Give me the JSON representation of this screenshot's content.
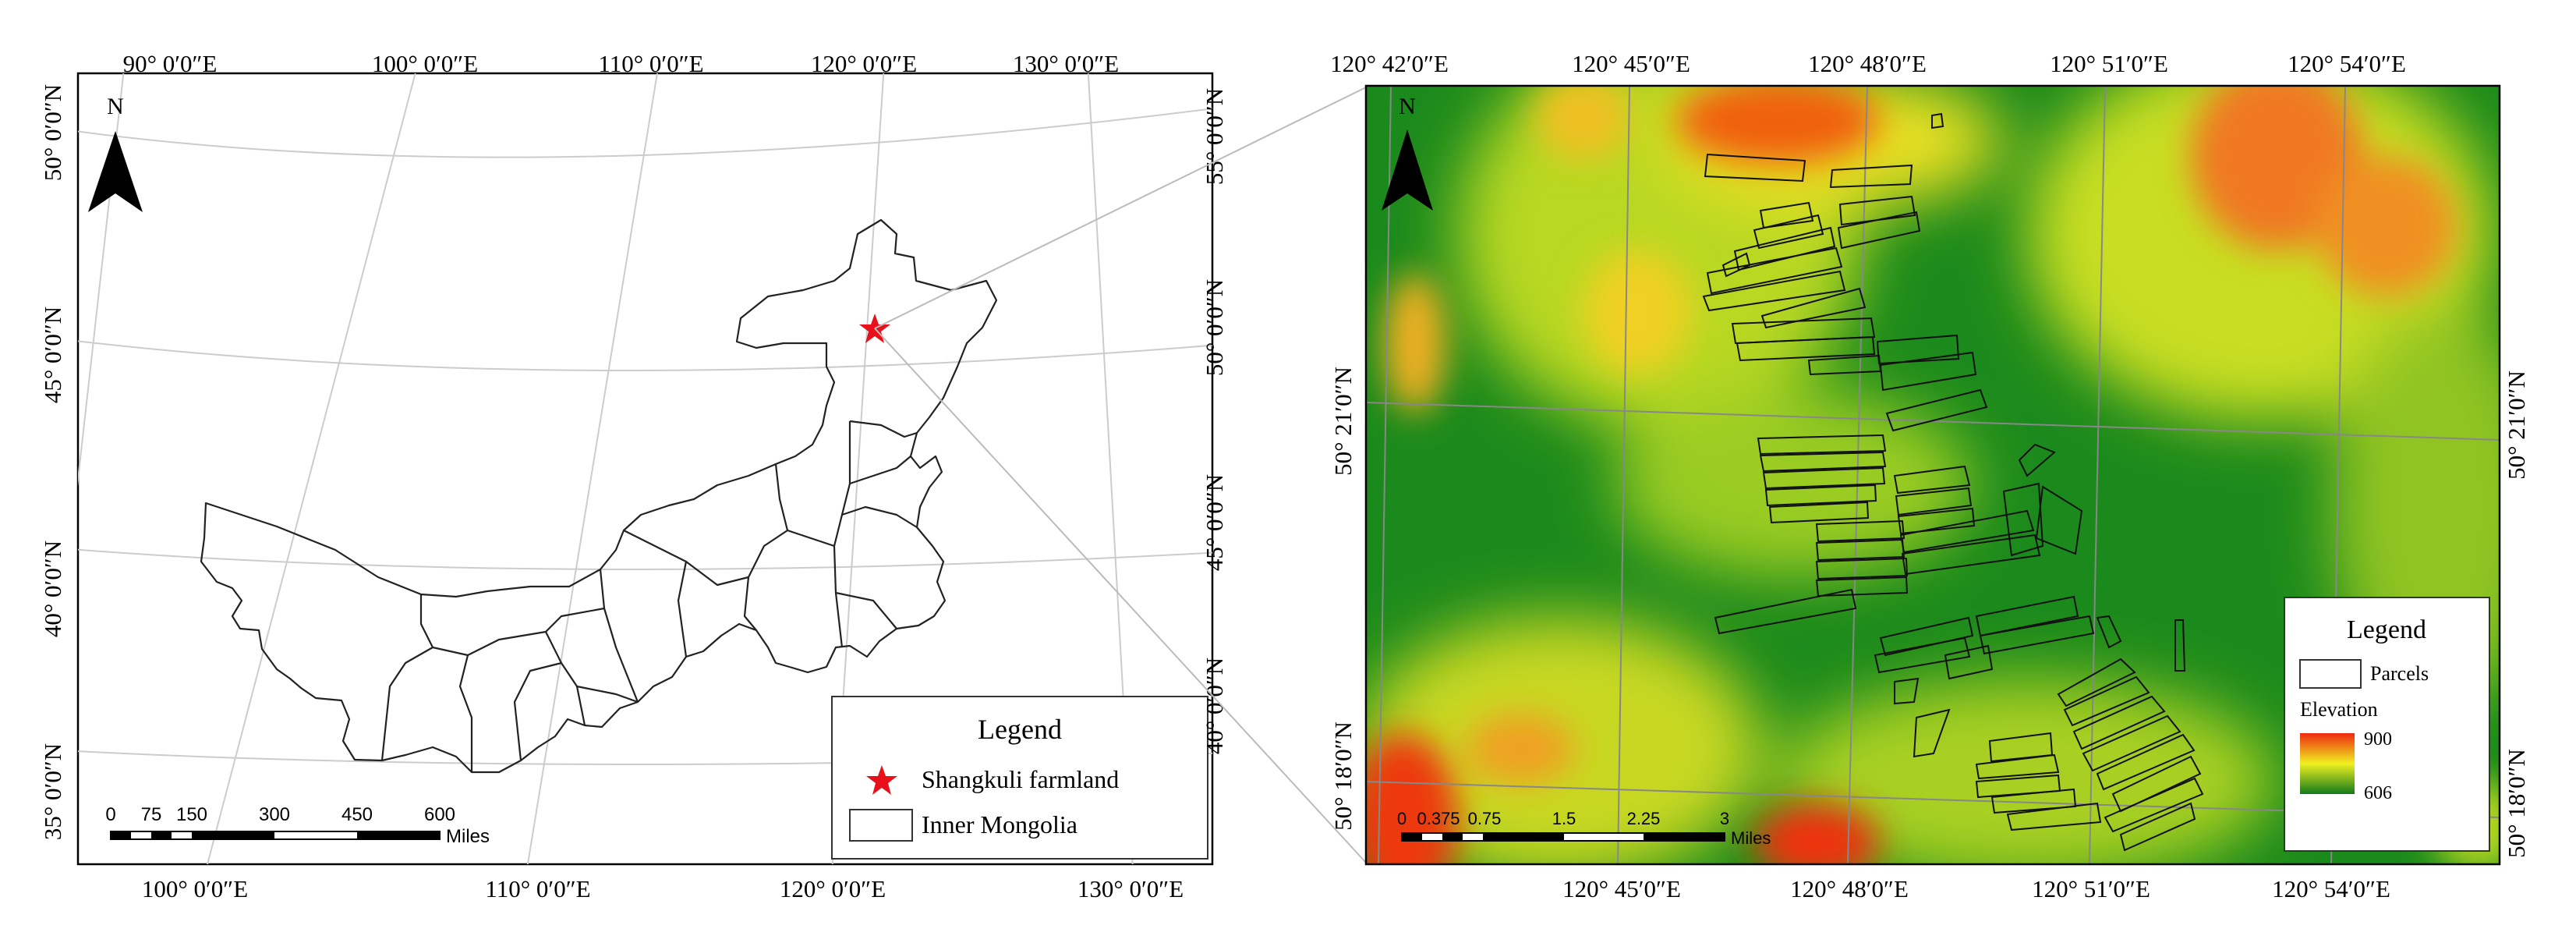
{
  "left_map": {
    "north_label": "N",
    "top_ticks": [
      "90° 0′0″E",
      "100° 0′0″E",
      "110° 0′0″E",
      "120° 0′0″E",
      "130° 0′0″E"
    ],
    "bottom_ticks": [
      "100° 0′0″E",
      "110° 0′0″E",
      "120° 0′0″E",
      "130° 0′0″E"
    ],
    "left_ticks": [
      "50° 0′0″N",
      "45° 0′0″N",
      "40° 0′0″N",
      "35° 0′0″N"
    ],
    "right_ticks": [
      "55° 0′0″N",
      "50° 0′0″N",
      "45° 0′0″N",
      "40° 0′0″N"
    ],
    "legend": {
      "title": "Legend",
      "items": [
        "Shangkuli farmland",
        "Inner Mongolia"
      ],
      "star_color": "#e8101a"
    },
    "scale_bar": {
      "labels": [
        "0",
        "75",
        "150",
        "300",
        "450",
        "600"
      ],
      "unit": "Miles"
    }
  },
  "right_map": {
    "north_label": "N",
    "top_ticks": [
      "120° 42′0″E",
      "120° 45′0″E",
      "120° 48′0″E",
      "120° 51′0″E",
      "120° 54′0″E"
    ],
    "bottom_ticks": [
      "120° 45′0″E",
      "120° 48′0″E",
      "120° 51′0″E",
      "120° 54′0″E"
    ],
    "left_ticks": [
      "50° 21′0″N",
      "50° 18′0″N"
    ],
    "right_ticks": [
      "50° 21′0″N",
      "50° 18′0″N"
    ],
    "legend": {
      "title": "Legend",
      "parcels_label": "Parcels",
      "elevation_label": "Elevation",
      "elev_max": "900",
      "elev_min": "606"
    },
    "scale_bar": {
      "labels": [
        "0",
        "0.375",
        "0.75",
        "1.5",
        "2.25",
        "3"
      ],
      "unit": "Miles"
    },
    "colors": {
      "low": "#127a1a",
      "mid": "#e8e820",
      "high": "#ee2a10"
    }
  }
}
